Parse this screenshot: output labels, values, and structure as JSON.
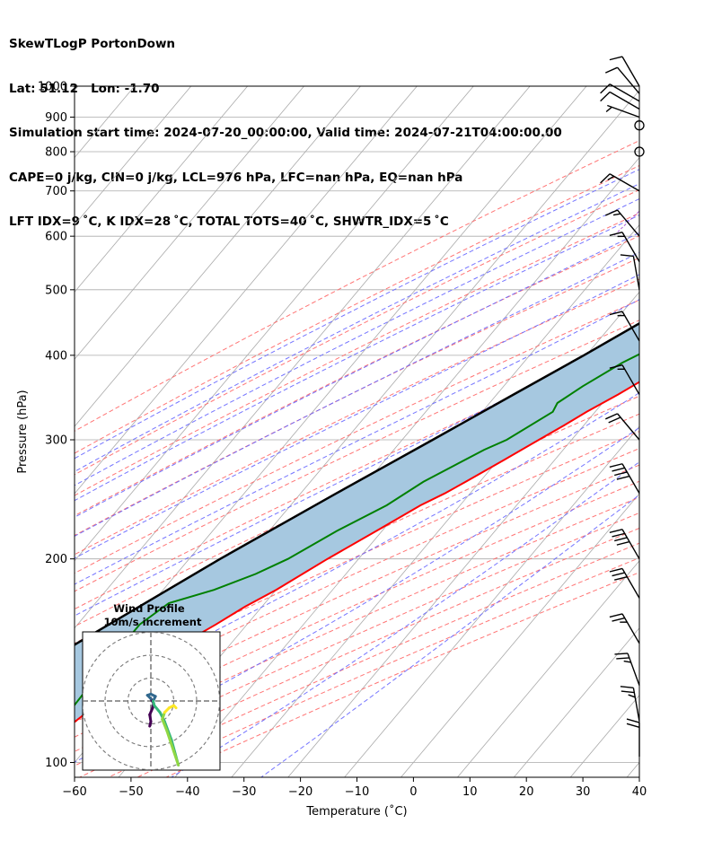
{
  "header": {
    "line1": "SkewTLogP PortonDown",
    "line2": "Lat: 51.12   Lon: -1.70",
    "line3": "Simulation start time: 2024-07-20_00:00:00, Valid time: 2024-07-21T04:00:00.00",
    "line4": "CAPE=0 j/kg, CIN=0 j/kg, LCL=976 hPa, LFC=nan hPa, EQ=nan hPa",
    "line5": "LFT IDX=9 ˚C, K IDX=28 ˚C, TOTAL TOTS=40 ˚C, SHWTR_IDX=5 ˚C"
  },
  "colors": {
    "temperature": "#ff0000",
    "dewpoint": "#008000",
    "parcel": "#000000",
    "fill": "#a6c8e0",
    "isotherm": "#aaaaaa",
    "dry_adiabat": "#ff6666",
    "moist_adiabat": "#6666ff",
    "mixing_ratio": "#9933cc"
  },
  "chart_data": {
    "type": "line",
    "title": "",
    "xlabel": "Temperature (˚C)",
    "ylabel": "Pressure (hPa)",
    "xlim": [
      -60,
      40
    ],
    "ylim_pressure": [
      1040,
      100
    ],
    "y_scale": "log",
    "x_ticks": [
      "−60",
      "−50",
      "−40",
      "−30",
      "−20",
      "−10",
      "0",
      "10",
      "20",
      "30",
      "40"
    ],
    "y_ticks": [
      "100",
      "200",
      "300",
      "400",
      "500",
      "600",
      "700",
      "800",
      "900",
      "1000"
    ],
    "grid": true,
    "series": [
      {
        "key": "temperature",
        "points": [
          [
            990,
            15.5
          ],
          [
            960,
            17.0
          ],
          [
            940,
            16.8
          ],
          [
            900,
            16.5
          ],
          [
            850,
            15.5
          ],
          [
            800,
            14.5
          ],
          [
            750,
            13.3
          ],
          [
            700,
            13.0
          ],
          [
            650,
            13.5
          ],
          [
            600,
            12.5
          ],
          [
            550,
            10.0
          ],
          [
            500,
            7.5
          ],
          [
            470,
            5.5
          ],
          [
            450,
            3.2
          ],
          [
            400,
            -2.5
          ],
          [
            350,
            -8.5
          ],
          [
            330,
            -11.5
          ],
          [
            315,
            -13.5
          ],
          [
            300,
            -15.8
          ],
          [
            280,
            -19.0
          ],
          [
            260,
            -22.5
          ],
          [
            250,
            -24.5
          ],
          [
            240,
            -27.0
          ],
          [
            220,
            -31.0
          ],
          [
            200,
            -35.5
          ],
          [
            180,
            -40.0
          ],
          [
            170,
            -43.0
          ],
          [
            160,
            -45.5
          ],
          [
            150,
            -48.5
          ],
          [
            145,
            -50.5
          ],
          [
            135,
            -53.0
          ],
          [
            120,
            -55.0
          ],
          [
            110,
            -57.0
          ],
          [
            104,
            -58.0
          ],
          [
            100,
            -58.5
          ]
        ]
      },
      {
        "key": "dewpoint",
        "points": [
          [
            990,
            15.5
          ],
          [
            960,
            16.0
          ],
          [
            930,
            16.3
          ],
          [
            900,
            15.5
          ],
          [
            850,
            14.0
          ],
          [
            800,
            12.0
          ],
          [
            750,
            10.2
          ],
          [
            700,
            8.5
          ],
          [
            650,
            7.0
          ],
          [
            600,
            5.0
          ],
          [
            550,
            2.2
          ],
          [
            500,
            -1.0
          ],
          [
            450,
            -5.0
          ],
          [
            420,
            -8.0
          ],
          [
            390,
            -12.5
          ],
          [
            360,
            -16.0
          ],
          [
            340,
            -18.0
          ],
          [
            330,
            -17.5
          ],
          [
            300,
            -21.5
          ],
          [
            290,
            -24.0
          ],
          [
            260,
            -30.0
          ],
          [
            240,
            -33.0
          ],
          [
            220,
            -38.0
          ],
          [
            200,
            -42.5
          ],
          [
            190,
            -46.0
          ],
          [
            180,
            -51.0
          ],
          [
            172,
            -57.0
          ],
          [
            160,
            -59.0
          ],
          [
            140,
            -59.0
          ],
          [
            120,
            -58.5
          ],
          [
            100,
            -58.0
          ]
        ]
      },
      {
        "key": "parcel",
        "points": [
          [
            995,
            15.5
          ],
          [
            960,
            14.7
          ],
          [
            900,
            13.5
          ],
          [
            850,
            11.5
          ],
          [
            800,
            9.5
          ],
          [
            750,
            7.0
          ],
          [
            700,
            4.4
          ],
          [
            650,
            1.5
          ],
          [
            600,
            -1.8
          ],
          [
            550,
            -5.4
          ],
          [
            500,
            -9.7
          ],
          [
            450,
            -14.9
          ],
          [
            400,
            -20.4
          ],
          [
            350,
            -27.0
          ],
          [
            300,
            -34.6
          ],
          [
            250,
            -43.7
          ],
          [
            200,
            -54.5
          ],
          [
            150,
            -67.3
          ],
          [
            100,
            -84.0
          ]
        ]
      }
    ],
    "wind_barbs": [
      {
        "pressure": 1000,
        "speed_kt": 10,
        "direction_deg": 330
      },
      {
        "pressure": 975,
        "speed_kt": 10,
        "direction_deg": 320
      },
      {
        "pressure": 950,
        "speed_kt": 10,
        "direction_deg": 300
      },
      {
        "pressure": 925,
        "speed_kt": 10,
        "direction_deg": 300
      },
      {
        "pressure": 900,
        "speed_kt": 5,
        "direction_deg": 290
      },
      {
        "pressure": 875,
        "speed_kt": 0,
        "direction_deg": 0
      },
      {
        "pressure": 800,
        "speed_kt": 0,
        "direction_deg": 0
      },
      {
        "pressure": 700,
        "speed_kt": 15,
        "direction_deg": 300
      },
      {
        "pressure": 600,
        "speed_kt": 15,
        "direction_deg": 320
      },
      {
        "pressure": 550,
        "speed_kt": 15,
        "direction_deg": 330
      },
      {
        "pressure": 500,
        "speed_kt": 10,
        "direction_deg": 350
      },
      {
        "pressure": 420,
        "speed_kt": 15,
        "direction_deg": 330
      },
      {
        "pressure": 350,
        "speed_kt": 15,
        "direction_deg": 330
      },
      {
        "pressure": 300,
        "speed_kt": 20,
        "direction_deg": 320
      },
      {
        "pressure": 250,
        "speed_kt": 40,
        "direction_deg": 330
      },
      {
        "pressure": 200,
        "speed_kt": 40,
        "direction_deg": 330
      },
      {
        "pressure": 175,
        "speed_kt": 30,
        "direction_deg": 330
      },
      {
        "pressure": 150,
        "speed_kt": 25,
        "direction_deg": 330
      },
      {
        "pressure": 130,
        "speed_kt": 25,
        "direction_deg": 340
      },
      {
        "pressure": 115,
        "speed_kt": 25,
        "direction_deg": 350
      },
      {
        "pressure": 102,
        "speed_kt": 20,
        "direction_deg": 360
      }
    ]
  },
  "hodograph": {
    "title_line1": "Wind Profile",
    "title_line2": "10m/s increment",
    "rings_ms": [
      10,
      20,
      30
    ],
    "path_colors": [
      "#440154",
      "#31688e",
      "#35b779",
      "#90d743",
      "#fde725"
    ],
    "points_uv": [
      [
        -0.5,
        -11
      ],
      [
        0,
        -9
      ],
      [
        -0.5,
        -6
      ],
      [
        0.8,
        -3
      ],
      [
        1.2,
        -1
      ],
      [
        0,
        1
      ],
      [
        -1.5,
        2.5
      ],
      [
        0,
        3
      ],
      [
        2,
        2
      ],
      [
        1,
        0
      ],
      [
        1.5,
        -2
      ],
      [
        4,
        -5
      ],
      [
        6,
        -9
      ],
      [
        9,
        -17
      ],
      [
        12,
        -28
      ],
      [
        10,
        -22
      ],
      [
        7,
        -13
      ],
      [
        5,
        -8
      ],
      [
        6,
        -5
      ],
      [
        8,
        -3
      ],
      [
        10,
        -2
      ],
      [
        11,
        -3
      ]
    ]
  }
}
